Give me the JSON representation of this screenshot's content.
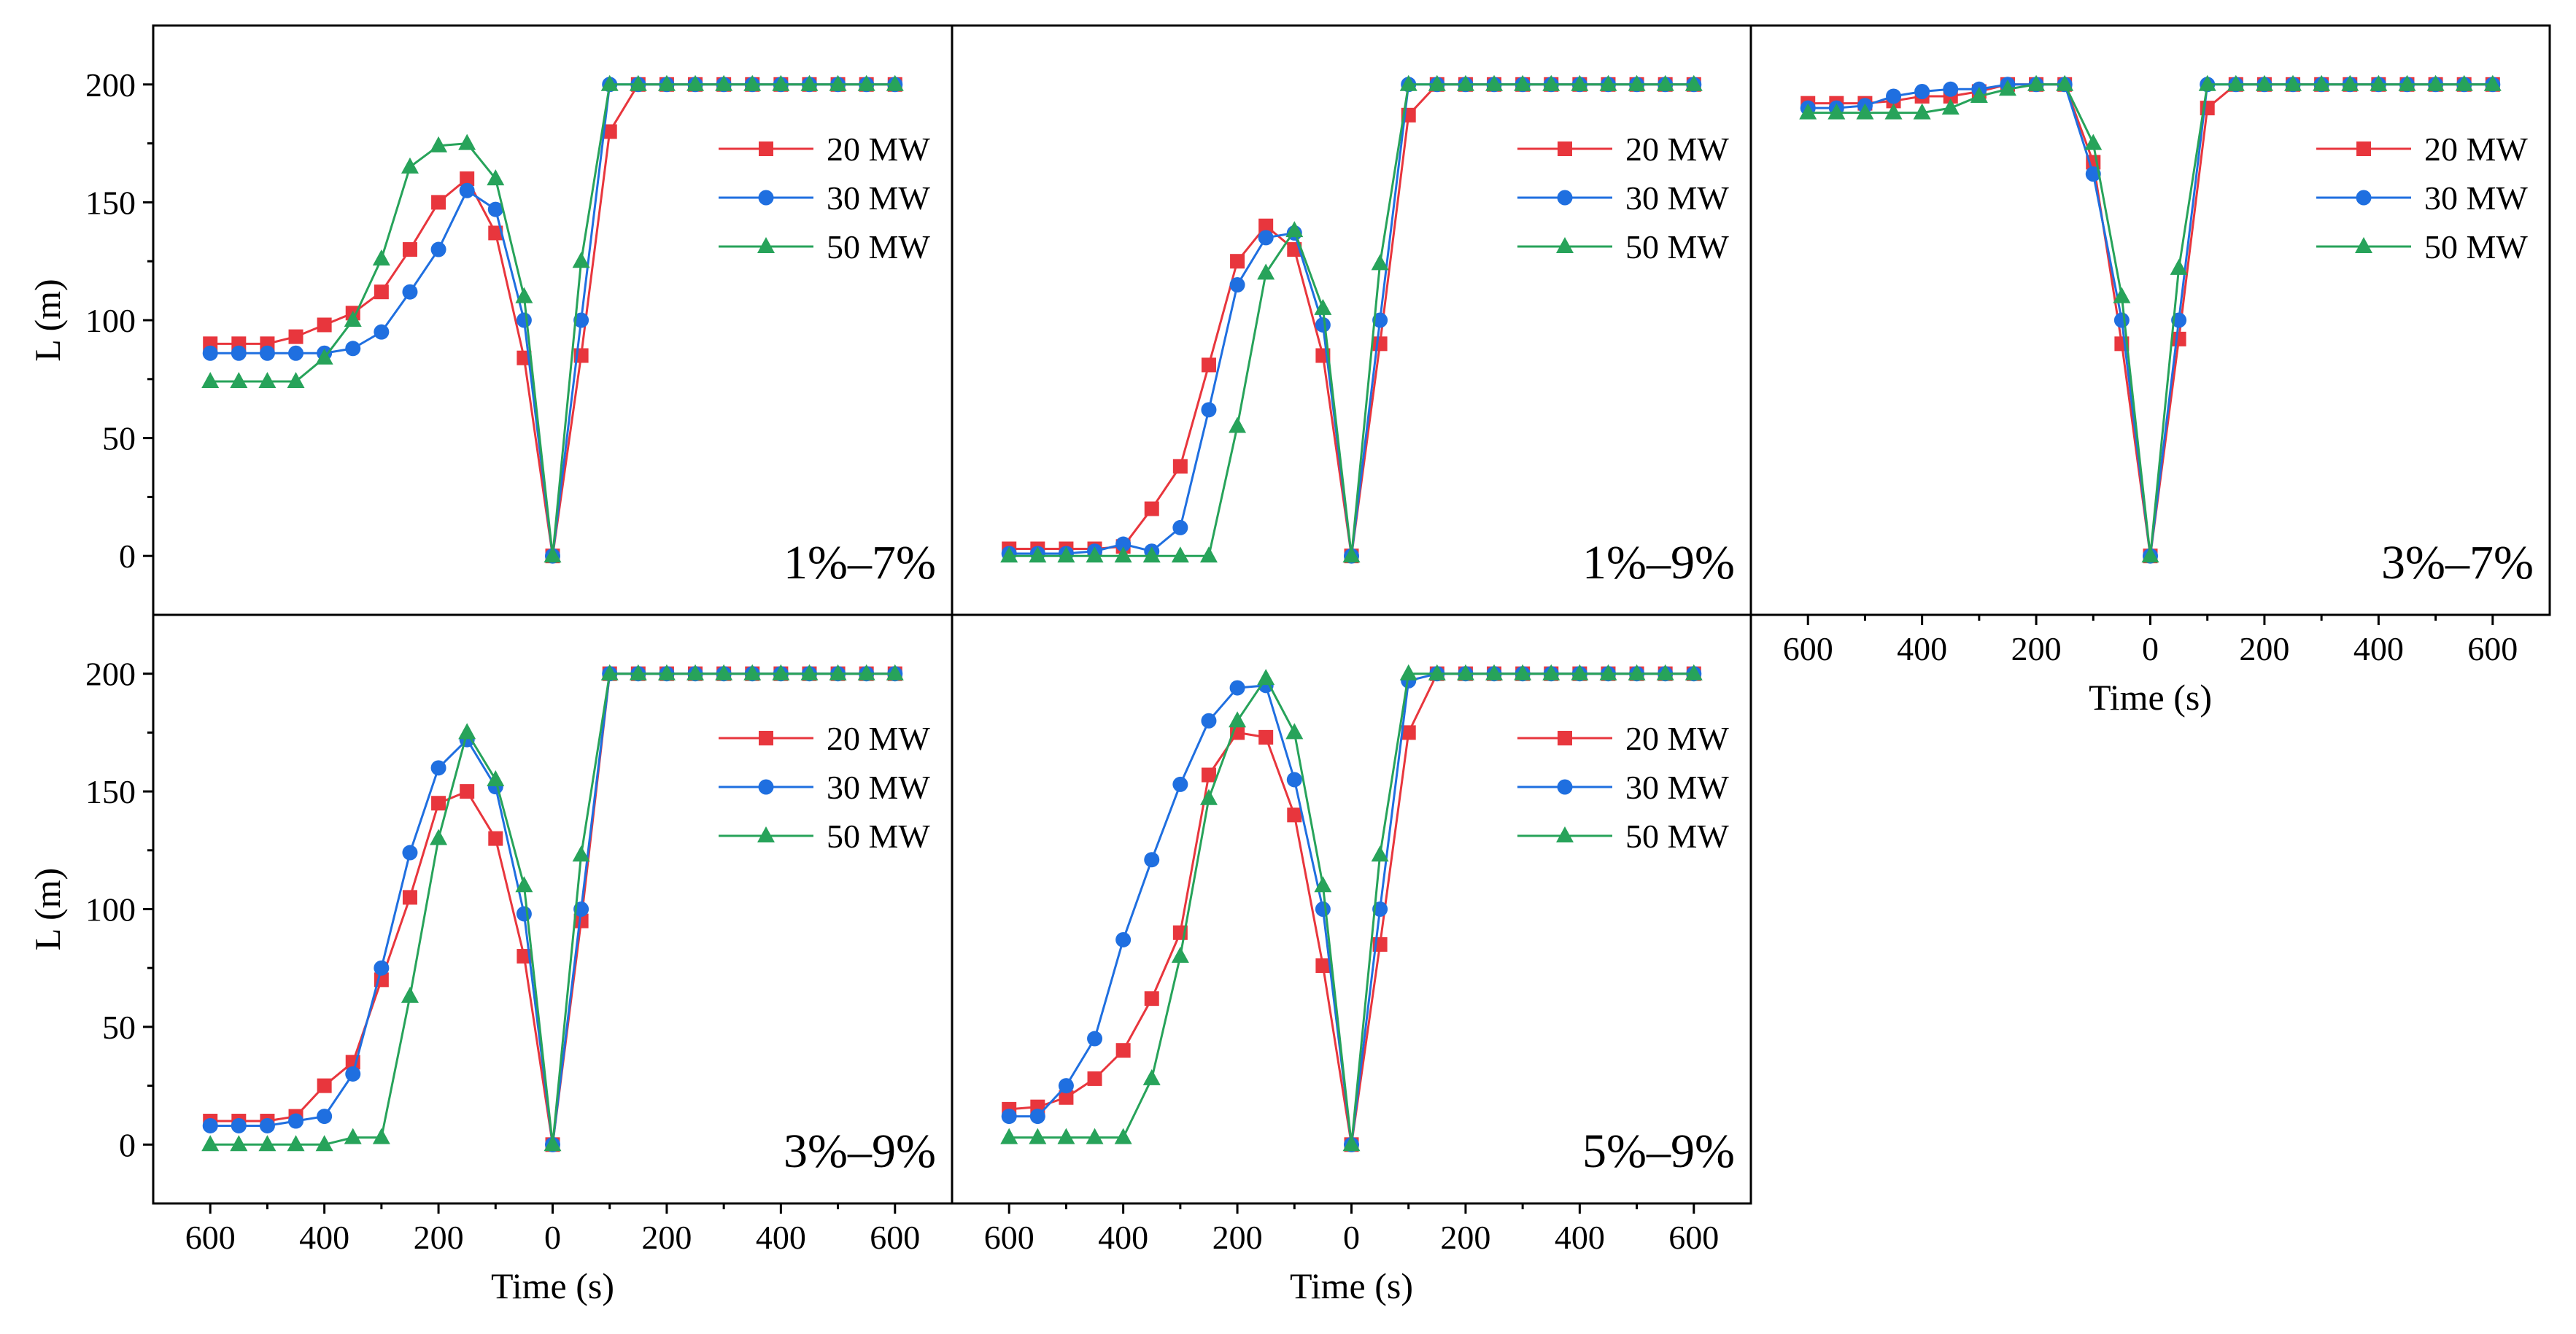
{
  "chart_data": {
    "type": "line",
    "y_axis_title": "L (m)",
    "x_axis_title": "Time (s)",
    "y_range": [
      -25,
      225
    ],
    "y_ticks": [
      0,
      50,
      100,
      150,
      200
    ],
    "x_tick_values": [
      -600,
      -400,
      -200,
      0,
      200,
      400,
      600
    ],
    "x_tick_labels": [
      "600",
      "400",
      "200",
      "0",
      "200",
      "400",
      "600"
    ],
    "x_range": [
      -700,
      700
    ],
    "x": [
      -600,
      -550,
      -500,
      -450,
      -400,
      -350,
      -300,
      -250,
      -200,
      -150,
      -100,
      -50,
      0,
      50,
      100,
      150,
      200,
      250,
      300,
      350,
      400,
      450,
      500,
      550,
      600
    ],
    "legend": [
      "20 MW",
      "30 MW",
      "50 MW"
    ],
    "colors": {
      "20 MW": "#e8363d",
      "30 MW": "#1f6fe0",
      "50 MW": "#27a35a"
    },
    "panels": [
      {
        "label": "1%–7%",
        "series": [
          {
            "name": "20 MW",
            "marker": "square",
            "values": [
              90,
              90,
              90,
              93,
              98,
              103,
              112,
              130,
              150,
              160,
              137,
              84,
              0,
              85,
              180,
              200,
              200,
              200,
              200,
              200,
              200,
              200,
              200,
              200,
              200
            ]
          },
          {
            "name": "30 MW",
            "marker": "circle",
            "values": [
              86,
              86,
              86,
              86,
              86,
              88,
              95,
              112,
              130,
              155,
              147,
              100,
              0,
              100,
              200,
              200,
              200,
              200,
              200,
              200,
              200,
              200,
              200,
              200,
              200
            ]
          },
          {
            "name": "50 MW",
            "marker": "triangle",
            "values": [
              74,
              74,
              74,
              74,
              84,
              100,
              126,
              165,
              174,
              175,
              160,
              110,
              0,
              125,
              200,
              200,
              200,
              200,
              200,
              200,
              200,
              200,
              200,
              200,
              200
            ]
          }
        ]
      },
      {
        "label": "1%–9%",
        "series": [
          {
            "name": "20 MW",
            "marker": "square",
            "values": [
              3,
              3,
              3,
              3,
              4,
              20,
              38,
              81,
              125,
              140,
              130,
              85,
              0,
              90,
              187,
              200,
              200,
              200,
              200,
              200,
              200,
              200,
              200,
              200,
              200
            ]
          },
          {
            "name": "30 MW",
            "marker": "circle",
            "values": [
              1,
              1,
              1,
              2,
              5,
              2,
              12,
              62,
              115,
              135,
              137,
              98,
              0,
              100,
              200,
              200,
              200,
              200,
              200,
              200,
              200,
              200,
              200,
              200,
              200
            ]
          },
          {
            "name": "50 MW",
            "marker": "triangle",
            "values": [
              0,
              0,
              0,
              0,
              0,
              0,
              0,
              0,
              55,
              120,
              138,
              105,
              0,
              124,
              200,
              200,
              200,
              200,
              200,
              200,
              200,
              200,
              200,
              200,
              200
            ]
          }
        ]
      },
      {
        "label": "3%–7%",
        "series": [
          {
            "name": "20 MW",
            "marker": "square",
            "values": [
              192,
              192,
              192,
              193,
              195,
              195,
              197,
              200,
              200,
              200,
              167,
              90,
              0,
              92,
              190,
              200,
              200,
              200,
              200,
              200,
              200,
              200,
              200,
              200,
              200
            ]
          },
          {
            "name": "30 MW",
            "marker": "circle",
            "values": [
              190,
              190,
              191,
              195,
              197,
              198,
              198,
              200,
              200,
              200,
              162,
              100,
              0,
              100,
              200,
              200,
              200,
              200,
              200,
              200,
              200,
              200,
              200,
              200,
              200
            ]
          },
          {
            "name": "50 MW",
            "marker": "triangle",
            "values": [
              188,
              188,
              188,
              188,
              188,
              190,
              195,
              198,
              200,
              200,
              175,
              110,
              0,
              122,
              200,
              200,
              200,
              200,
              200,
              200,
              200,
              200,
              200,
              200,
              200
            ]
          }
        ]
      },
      {
        "label": "3%–9%",
        "series": [
          {
            "name": "20 MW",
            "marker": "square",
            "values": [
              10,
              10,
              10,
              12,
              25,
              35,
              70,
              105,
              145,
              150,
              130,
              80,
              0,
              95,
              200,
              200,
              200,
              200,
              200,
              200,
              200,
              200,
              200,
              200,
              200
            ]
          },
          {
            "name": "30 MW",
            "marker": "circle",
            "values": [
              8,
              8,
              8,
              10,
              12,
              30,
              75,
              124,
              160,
              172,
              152,
              98,
              0,
              100,
              200,
              200,
              200,
              200,
              200,
              200,
              200,
              200,
              200,
              200,
              200
            ]
          },
          {
            "name": "50 MW",
            "marker": "triangle",
            "values": [
              0,
              0,
              0,
              0,
              0,
              3,
              3,
              63,
              130,
              175,
              155,
              110,
              0,
              123,
              200,
              200,
              200,
              200,
              200,
              200,
              200,
              200,
              200,
              200,
              200
            ]
          }
        ]
      },
      {
        "label": "5%–9%",
        "series": [
          {
            "name": "20 MW",
            "marker": "square",
            "values": [
              15,
              16,
              20,
              28,
              40,
              62,
              90,
              157,
              175,
              173,
              140,
              76,
              0,
              85,
              175,
              200,
              200,
              200,
              200,
              200,
              200,
              200,
              200,
              200,
              200
            ]
          },
          {
            "name": "30 MW",
            "marker": "circle",
            "values": [
              12,
              12,
              25,
              45,
              87,
              121,
              153,
              180,
              194,
              195,
              155,
              100,
              0,
              100,
              197,
              200,
              200,
              200,
              200,
              200,
              200,
              200,
              200,
              200,
              200
            ]
          },
          {
            "name": "50 MW",
            "marker": "triangle",
            "values": [
              3,
              3,
              3,
              3,
              3,
              28,
              80,
              147,
              180,
              198,
              175,
              110,
              0,
              123,
              200,
              200,
              200,
              200,
              200,
              200,
              200,
              200,
              200,
              200,
              200
            ]
          }
        ]
      }
    ]
  }
}
